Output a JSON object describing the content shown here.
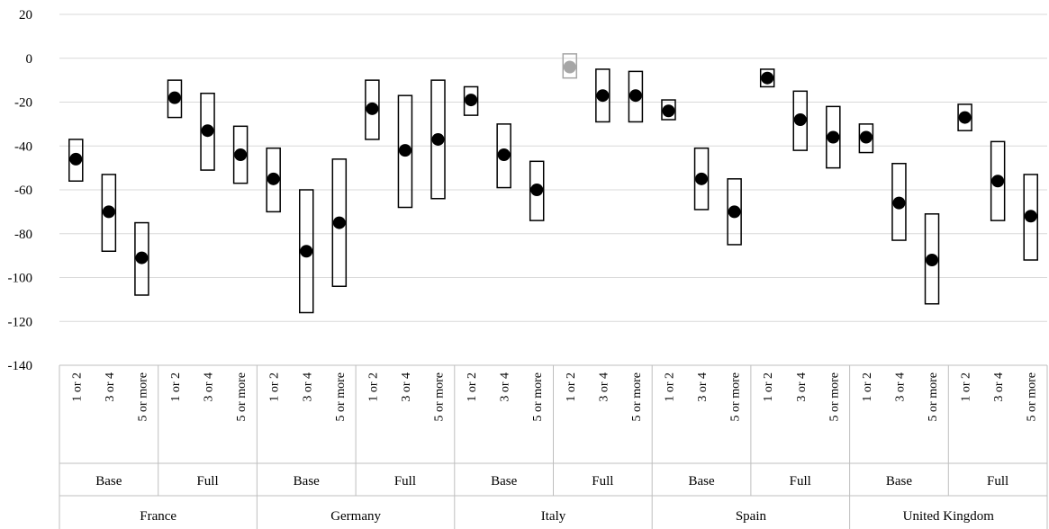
{
  "chart_data": {
    "type": "range",
    "y_ticks": [
      "20",
      "0",
      "-20",
      "-40",
      "-60",
      "-80",
      "-100",
      "-120",
      "-140"
    ],
    "ylim": [
      -140,
      20
    ],
    "grid": true,
    "legend": "none",
    "colors": {
      "bar_stroke": "#000000",
      "point": "#000000",
      "highlight": "#a6a6a6",
      "grid": "#d9d9d9",
      "axis": "#bfbfbf"
    },
    "countries": [
      {
        "name": "France",
        "groups": [
          {
            "name": "Base",
            "items": [
              {
                "label": "1 or 2",
                "low": -56,
                "high": -37,
                "point": -46
              },
              {
                "label": "3 or 4",
                "low": -88,
                "high": -53,
                "point": -70
              },
              {
                "label": "5 or more",
                "low": -108,
                "high": -75,
                "point": -91
              }
            ]
          },
          {
            "name": "Full",
            "items": [
              {
                "label": "1 or 2",
                "low": -27,
                "high": -10,
                "point": -18
              },
              {
                "label": "3 or 4",
                "low": -51,
                "high": -16,
                "point": -33
              },
              {
                "label": "5 or more",
                "low": -57,
                "high": -31,
                "point": -44
              }
            ]
          }
        ]
      },
      {
        "name": "Germany",
        "groups": [
          {
            "name": "Base",
            "items": [
              {
                "label": "1 or 2",
                "low": -70,
                "high": -41,
                "point": -55
              },
              {
                "label": "3 or 4",
                "low": -116,
                "high": -60,
                "point": -88
              },
              {
                "label": "5 or more",
                "low": -104,
                "high": -46,
                "point": -75
              }
            ]
          },
          {
            "name": "Full",
            "items": [
              {
                "label": "1 or 2",
                "low": -37,
                "high": -10,
                "point": -23
              },
              {
                "label": "3 or 4",
                "low": -68,
                "high": -17,
                "point": -42
              },
              {
                "label": "5 or more",
                "low": -64,
                "high": -10,
                "point": -37
              }
            ]
          }
        ]
      },
      {
        "name": "Italy",
        "groups": [
          {
            "name": "Base",
            "items": [
              {
                "label": "1 or 2",
                "low": -26,
                "high": -13,
                "point": -19
              },
              {
                "label": "3 or 4",
                "low": -59,
                "high": -30,
                "point": -44
              },
              {
                "label": "5 or more",
                "low": -74,
                "high": -47,
                "point": -60
              }
            ]
          },
          {
            "name": "Full",
            "items": [
              {
                "label": "1 or 2",
                "low": -9,
                "high": 2,
                "point": -4,
                "highlight": true
              },
              {
                "label": "3 or 4",
                "low": -29,
                "high": -5,
                "point": -17
              },
              {
                "label": "5 or more",
                "low": -29,
                "high": -6,
                "point": -17
              }
            ]
          }
        ]
      },
      {
        "name": "Spain",
        "groups": [
          {
            "name": "Base",
            "items": [
              {
                "label": "1 or 2",
                "low": -28,
                "high": -19,
                "point": -24
              },
              {
                "label": "3 or 4",
                "low": -69,
                "high": -41,
                "point": -55
              },
              {
                "label": "5 or more",
                "low": -85,
                "high": -55,
                "point": -70
              }
            ]
          },
          {
            "name": "Full",
            "items": [
              {
                "label": "1 or 2",
                "low": -13,
                "high": -5,
                "point": -9
              },
              {
                "label": "3 or 4",
                "low": -42,
                "high": -15,
                "point": -28
              },
              {
                "label": "5 or more",
                "low": -50,
                "high": -22,
                "point": -36
              }
            ]
          }
        ]
      },
      {
        "name": "United Kingdom",
        "groups": [
          {
            "name": "Base",
            "items": [
              {
                "label": "1 or 2",
                "low": -43,
                "high": -30,
                "point": -36
              },
              {
                "label": "3 or 4",
                "low": -83,
                "high": -48,
                "point": -66
              },
              {
                "label": "5 or more",
                "low": -112,
                "high": -71,
                "point": -92
              }
            ]
          },
          {
            "name": "Full",
            "items": [
              {
                "label": "1 or 2",
                "low": -33,
                "high": -21,
                "point": -27
              },
              {
                "label": "3 or 4",
                "low": -74,
                "high": -38,
                "point": -56
              },
              {
                "label": "5 or more",
                "low": -92,
                "high": -53,
                "point": -72
              }
            ]
          }
        ]
      }
    ]
  }
}
